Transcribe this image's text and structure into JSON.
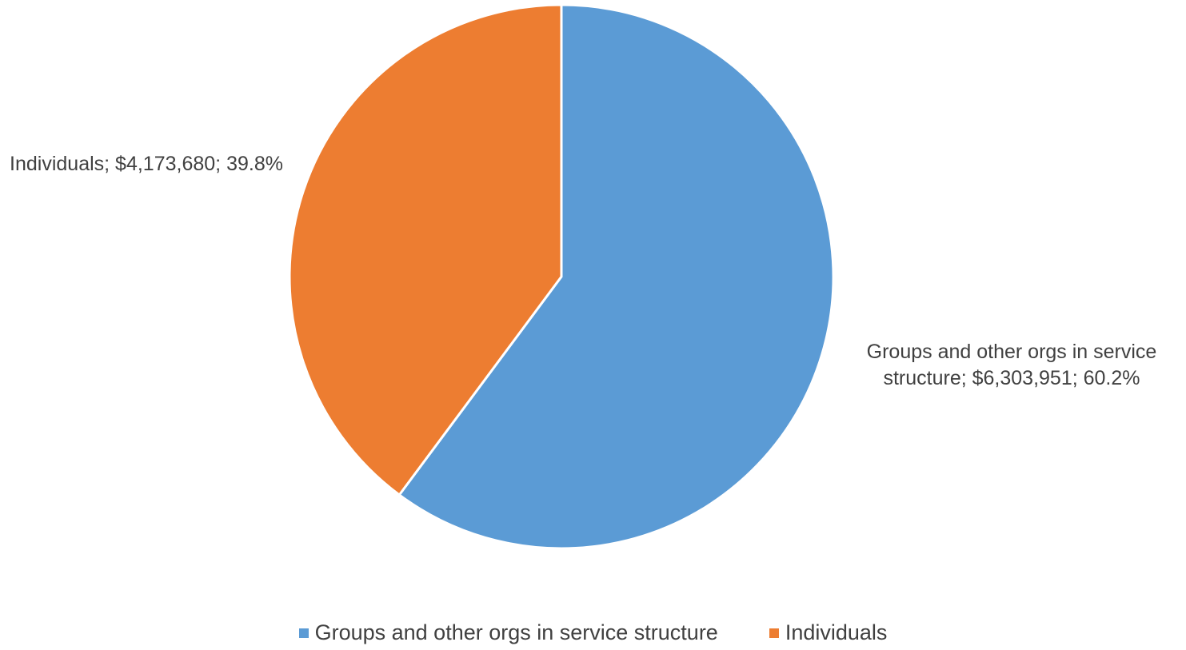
{
  "chart_data": {
    "type": "pie",
    "categories": [
      "Groups and other orgs in service structure",
      "Individuals"
    ],
    "values": [
      6303951,
      4173680
    ],
    "data_labels": [
      "Groups and other orgs in service structure; $6,303,951; 60.2%",
      "Individuals; $4,173,680; 39.8%"
    ],
    "colors": [
      "#5b9bd5",
      "#ed7d31"
    ],
    "start_angle": 0,
    "direction": "clockwise",
    "legend": "bottom"
  }
}
